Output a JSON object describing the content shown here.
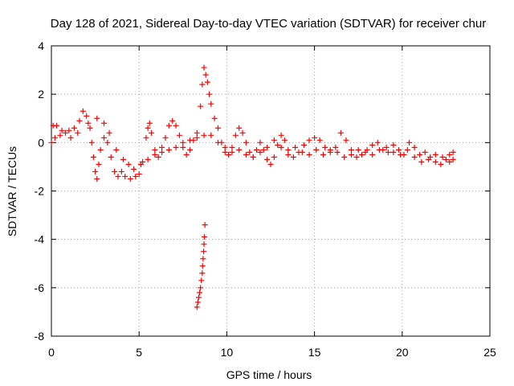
{
  "chart_data": {
    "type": "scatter",
    "title": "Day 128 of 2021, Sidereal Day-to-day VTEC variation (SDTVAR) for receiver chur",
    "xlabel": "GPS time / hours",
    "ylabel": "SDTVAR / TECUs",
    "xlim": [
      0,
      25
    ],
    "ylim": [
      -8,
      4
    ],
    "xticks": [
      0,
      5,
      10,
      15,
      20,
      25
    ],
    "xtick_labels": [
      "0",
      "5",
      "10",
      "15",
      "20",
      "25"
    ],
    "yticks": [
      -8,
      -6,
      -4,
      -2,
      0,
      2,
      4
    ],
    "ytick_labels": [
      "-8",
      "-6",
      "-4",
      "-2",
      "0",
      "2",
      "4"
    ],
    "grid": true,
    "marker": "+",
    "series": [
      {
        "name": "SDTVAR",
        "color": "#ff0000",
        "points": [
          [
            0.0,
            0.0
          ],
          [
            0.1,
            0.7
          ],
          [
            0.3,
            0.7
          ],
          [
            0.5,
            0.3
          ],
          [
            0.8,
            0.4
          ],
          [
            1.0,
            0.5
          ],
          [
            1.3,
            0.6
          ],
          [
            1.6,
            0.9
          ],
          [
            1.8,
            1.3
          ],
          [
            2.0,
            1.1
          ],
          [
            2.2,
            0.6
          ],
          [
            2.3,
            0.0
          ],
          [
            2.4,
            -0.6
          ],
          [
            2.5,
            -1.2
          ],
          [
            2.6,
            -1.5
          ],
          [
            2.7,
            -0.9
          ],
          [
            2.8,
            -0.3
          ],
          [
            3.0,
            0.2
          ],
          [
            3.2,
            0.0
          ],
          [
            3.4,
            -0.6
          ],
          [
            3.6,
            -1.2
          ],
          [
            3.8,
            -1.4
          ],
          [
            4.0,
            -1.2
          ],
          [
            4.2,
            -1.4
          ],
          [
            4.5,
            -1.5
          ],
          [
            4.8,
            -1.4
          ],
          [
            5.0,
            -1.3
          ],
          [
            5.2,
            -0.8
          ],
          [
            5.4,
            0.2
          ],
          [
            5.5,
            0.6
          ],
          [
            5.6,
            0.8
          ],
          [
            5.7,
            0.4
          ],
          [
            5.9,
            -0.3
          ],
          [
            6.1,
            -0.6
          ],
          [
            6.3,
            -0.2
          ],
          [
            6.5,
            0.2
          ],
          [
            6.7,
            0.7
          ],
          [
            6.9,
            0.9
          ],
          [
            7.1,
            0.7
          ],
          [
            7.3,
            0.3
          ],
          [
            7.5,
            -0.2
          ],
          [
            7.7,
            -0.5
          ],
          [
            7.9,
            -0.3
          ],
          [
            8.1,
            0.1
          ],
          [
            8.3,
            0.4
          ],
          [
            8.5,
            1.5
          ],
          [
            8.6,
            2.4
          ],
          [
            8.7,
            3.1
          ],
          [
            8.8,
            2.8
          ],
          [
            8.9,
            2.5
          ],
          [
            9.0,
            2.0
          ],
          [
            9.1,
            1.6
          ],
          [
            9.3,
            1.0
          ],
          [
            9.5,
            0.6
          ],
          [
            9.7,
            0.0
          ],
          [
            9.9,
            -0.4
          ],
          [
            10.1,
            -0.5
          ],
          [
            10.3,
            -0.2
          ],
          [
            10.5,
            0.3
          ],
          [
            10.7,
            0.6
          ],
          [
            10.9,
            0.4
          ],
          [
            11.1,
            0.0
          ],
          [
            11.3,
            -0.4
          ],
          [
            11.5,
            -0.6
          ],
          [
            11.7,
            -0.3
          ],
          [
            11.9,
            0.0
          ],
          [
            12.1,
            -0.3
          ],
          [
            12.3,
            -0.7
          ],
          [
            12.5,
            -0.9
          ],
          [
            12.7,
            -0.6
          ],
          [
            12.9,
            -0.1
          ],
          [
            13.1,
            0.3
          ],
          [
            13.3,
            0.1
          ],
          [
            13.5,
            -0.3
          ],
          [
            13.8,
            -0.6
          ],
          [
            14.1,
            -0.4
          ],
          [
            14.4,
            -0.1
          ],
          [
            14.7,
            0.1
          ],
          [
            15.0,
            0.2
          ],
          [
            15.3,
            0.1
          ],
          [
            15.6,
            -0.2
          ],
          [
            15.9,
            -0.4
          ],
          [
            16.2,
            -0.2
          ],
          [
            16.5,
            0.4
          ],
          [
            16.8,
            0.1
          ],
          [
            17.1,
            -0.3
          ],
          [
            17.4,
            -0.6
          ],
          [
            17.7,
            -0.5
          ],
          [
            18.0,
            -0.3
          ],
          [
            18.3,
            -0.1
          ],
          [
            18.6,
            0.0
          ],
          [
            18.9,
            -0.3
          ],
          [
            19.2,
            -0.4
          ],
          [
            19.5,
            -0.1
          ],
          [
            19.8,
            -0.3
          ],
          [
            20.1,
            -0.5
          ],
          [
            20.4,
            0.0
          ],
          [
            20.7,
            -0.2
          ],
          [
            21.0,
            -0.5
          ],
          [
            21.3,
            -0.4
          ],
          [
            21.6,
            -0.6
          ],
          [
            21.9,
            -0.8
          ],
          [
            22.2,
            -0.9
          ],
          [
            22.5,
            -0.7
          ],
          [
            22.7,
            -0.5
          ],
          [
            22.9,
            -0.7
          ],
          [
            0.2,
            0.2
          ],
          [
            0.6,
            0.5
          ],
          [
            1.1,
            0.2
          ],
          [
            1.5,
            0.4
          ],
          [
            2.1,
            0.8
          ],
          [
            2.6,
            1.0
          ],
          [
            3.0,
            0.8
          ],
          [
            3.3,
            0.4
          ],
          [
            3.7,
            -0.3
          ],
          [
            4.1,
            -0.7
          ],
          [
            4.4,
            -0.9
          ],
          [
            4.7,
            -1.1
          ],
          [
            5.1,
            -0.9
          ],
          [
            5.5,
            -0.7
          ],
          [
            5.9,
            -0.5
          ],
          [
            6.3,
            -0.4
          ],
          [
            6.7,
            -0.3
          ],
          [
            7.1,
            -0.2
          ],
          [
            7.5,
            0.0
          ],
          [
            7.9,
            0.1
          ],
          [
            8.3,
            0.2
          ],
          [
            8.7,
            0.3
          ],
          [
            9.1,
            0.3
          ],
          [
            9.5,
            0.0
          ],
          [
            9.9,
            -0.2
          ],
          [
            10.3,
            -0.4
          ],
          [
            10.7,
            -0.3
          ],
          [
            11.1,
            -0.5
          ],
          [
            11.5,
            -0.6
          ],
          [
            11.9,
            -0.4
          ],
          [
            12.3,
            -0.2
          ],
          [
            12.7,
            0.1
          ],
          [
            13.1,
            -0.2
          ],
          [
            13.5,
            -0.5
          ],
          [
            13.9,
            -0.2
          ],
          [
            14.3,
            -0.4
          ],
          [
            14.7,
            -0.5
          ],
          [
            15.1,
            -0.3
          ],
          [
            15.5,
            -0.5
          ],
          [
            15.9,
            -0.3
          ],
          [
            16.3,
            -0.4
          ],
          [
            16.7,
            -0.6
          ],
          [
            17.1,
            -0.5
          ],
          [
            17.5,
            -0.3
          ],
          [
            17.9,
            -0.4
          ],
          [
            18.3,
            -0.5
          ],
          [
            18.7,
            -0.3
          ],
          [
            19.1,
            -0.2
          ],
          [
            19.5,
            -0.4
          ],
          [
            19.9,
            -0.5
          ],
          [
            20.3,
            -0.3
          ],
          [
            20.7,
            -0.6
          ],
          [
            21.1,
            -0.8
          ],
          [
            21.5,
            -0.7
          ],
          [
            21.9,
            -0.5
          ],
          [
            22.3,
            -0.6
          ],
          [
            22.7,
            -0.8
          ],
          [
            22.9,
            -0.4
          ],
          [
            8.3,
            -6.8
          ],
          [
            8.35,
            -6.6
          ],
          [
            8.4,
            -6.4
          ],
          [
            8.45,
            -6.2
          ],
          [
            8.5,
            -6.0
          ],
          [
            8.55,
            -5.7
          ],
          [
            8.6,
            -5.4
          ],
          [
            8.62,
            -5.1
          ],
          [
            8.65,
            -4.8
          ],
          [
            8.68,
            -4.5
          ],
          [
            8.7,
            -4.2
          ],
          [
            8.72,
            -3.9
          ],
          [
            8.75,
            -3.4
          ]
        ]
      }
    ]
  }
}
